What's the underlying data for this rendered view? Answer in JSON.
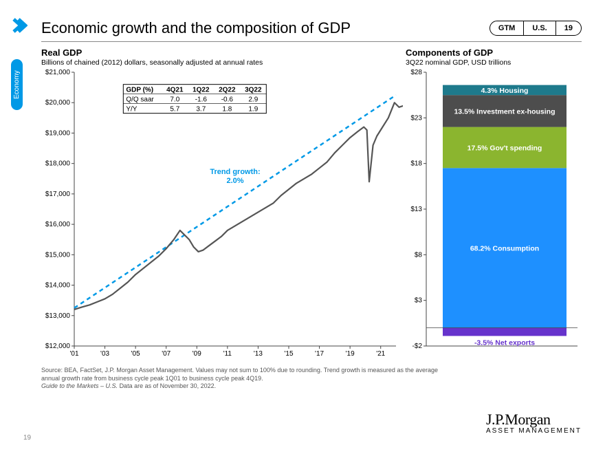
{
  "header": {
    "title": "Economic growth and the composition of GDP",
    "pill": {
      "a": "GTM",
      "b": "U.S.",
      "c": "19"
    },
    "side_tab": "Economy"
  },
  "chevron_color": "#0099e6",
  "line_chart": {
    "title": "Real GDP",
    "subtitle": "Billions of chained (2012) dollars, seasonally adjusted at annual rates",
    "ylim": [
      12000,
      21000
    ],
    "ytick_step": 1000,
    "yprefix": "$",
    "xlim": [
      2001,
      2022
    ],
    "xticks": [
      2001,
      2003,
      2005,
      2007,
      2009,
      2011,
      2013,
      2015,
      2017,
      2019,
      2021
    ],
    "xlabels": [
      "'01",
      "'03",
      "'05",
      "'07",
      "'09",
      "'11",
      "'13",
      "'15",
      "'17",
      "'19",
      "'21"
    ],
    "axis_color": "#444",
    "grid": false,
    "table": {
      "header": [
        "GDP (%)",
        "4Q21",
        "1Q22",
        "2Q22",
        "3Q22"
      ],
      "rows": [
        [
          "Q/Q saar",
          "7.0",
          "-1.6",
          "-0.6",
          "2.9"
        ],
        [
          "Y/Y",
          "5.7",
          "3.7",
          "1.8",
          "1.9"
        ]
      ],
      "border_color": "#000",
      "fontsize": 10
    },
    "trend_label": "Trend growth:",
    "trend_value": "2.0%",
    "trend_color": "#0099e6",
    "trend_dash": "6,5",
    "trend_width": 2.5,
    "trend_line": [
      [
        2001,
        13250
      ],
      [
        2022,
        20250
      ]
    ],
    "series_color": "#555",
    "series_width": 2.2,
    "series": [
      [
        2001,
        13200
      ],
      [
        2001.5,
        13280
      ],
      [
        2002,
        13350
      ],
      [
        2002.5,
        13450
      ],
      [
        2003,
        13550
      ],
      [
        2003.5,
        13700
      ],
      [
        2004,
        13900
      ],
      [
        2004.5,
        14100
      ],
      [
        2005,
        14350
      ],
      [
        2005.5,
        14550
      ],
      [
        2006,
        14750
      ],
      [
        2006.5,
        14950
      ],
      [
        2007,
        15200
      ],
      [
        2007.5,
        15500
      ],
      [
        2007.9,
        15800
      ],
      [
        2008.2,
        15650
      ],
      [
        2008.5,
        15500
      ],
      [
        2008.8,
        15250
      ],
      [
        2009.1,
        15100
      ],
      [
        2009.4,
        15150
      ],
      [
        2009.8,
        15300
      ],
      [
        2010.2,
        15450
      ],
      [
        2010.6,
        15600
      ],
      [
        2011,
        15800
      ],
      [
        2011.5,
        15950
      ],
      [
        2012,
        16100
      ],
      [
        2012.5,
        16250
      ],
      [
        2013,
        16400
      ],
      [
        2013.5,
        16550
      ],
      [
        2014,
        16700
      ],
      [
        2014.5,
        16950
      ],
      [
        2015,
        17150
      ],
      [
        2015.5,
        17350
      ],
      [
        2016,
        17500
      ],
      [
        2016.5,
        17650
      ],
      [
        2017,
        17850
      ],
      [
        2017.5,
        18050
      ],
      [
        2018,
        18350
      ],
      [
        2018.5,
        18600
      ],
      [
        2019,
        18850
      ],
      [
        2019.5,
        19050
      ],
      [
        2019.9,
        19200
      ],
      [
        2020.1,
        19100
      ],
      [
        2020.25,
        17400
      ],
      [
        2020.5,
        18600
      ],
      [
        2020.75,
        18900
      ],
      [
        2021,
        19100
      ],
      [
        2021.5,
        19500
      ],
      [
        2021.9,
        20000
      ],
      [
        2022.2,
        19850
      ],
      [
        2022.5,
        19900
      ]
    ]
  },
  "bar_chart": {
    "title": "Components of GDP",
    "subtitle": "3Q22 nominal GDP, USD trillions",
    "ylim": [
      -2,
      28
    ],
    "yticks": [
      -2,
      3,
      8,
      13,
      18,
      23,
      28
    ],
    "yprefix": "$",
    "yneg_prefix": "-$",
    "axis_color": "#444",
    "stack": [
      {
        "label": "-3.5% Net exports",
        "from": -0.9,
        "to": 0,
        "fill": "#6633cc",
        "text_color": "#6633cc",
        "text_inside": false
      },
      {
        "label": "68.2% Consumption",
        "from": 0,
        "to": 17.5,
        "fill": "#1e90ff",
        "text_color": "#fff",
        "text_inside": true
      },
      {
        "label": "17.5% Gov't  spending",
        "from": 17.5,
        "to": 22,
        "fill": "#8bb52f",
        "text_color": "#fff",
        "text_inside": true
      },
      {
        "label": "13.5% Investment ex-housing",
        "from": 22,
        "to": 25.5,
        "fill": "#4d4d4d",
        "text_color": "#fff",
        "text_inside": true
      },
      {
        "label": "4.3% Housing",
        "from": 25.5,
        "to": 26.6,
        "fill": "#1e7a8c",
        "text_color": "#fff",
        "text_inside": true
      }
    ]
  },
  "footnote": {
    "line1": "Source: BEA, FactSet, J.P. Morgan Asset Management. Values may not sum to 100% due to rounding. Trend growth is measured as the average",
    "line2": "annual growth rate from business cycle peak 1Q01 to business cycle peak 4Q19.",
    "line3a": "Guide to the Markets – U.S. ",
    "line3b": "Data are as of November 30, 2022."
  },
  "logo": {
    "name": "J.P.Morgan",
    "sub": "ASSET MANAGEMENT"
  },
  "page_num": "19"
}
